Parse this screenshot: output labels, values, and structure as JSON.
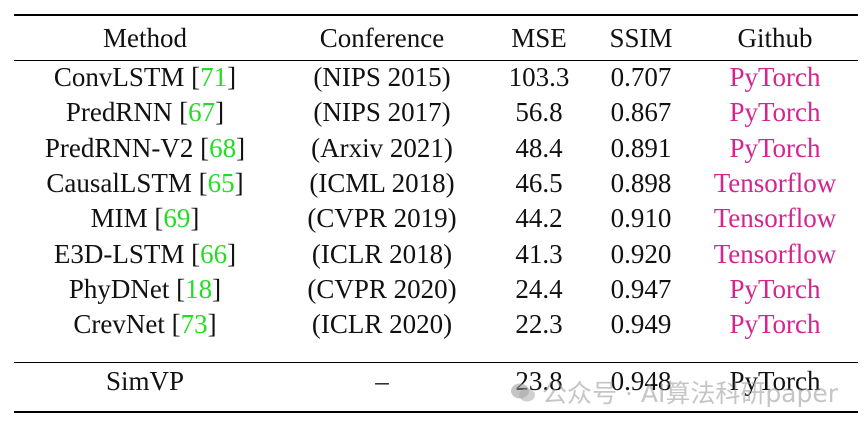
{
  "table": {
    "headers": [
      "Method",
      "Conference",
      "MSE",
      "SSIM",
      "Github"
    ],
    "rows": [
      {
        "method": "ConvLSTM",
        "ref": "71",
        "conference": "(NIPS 2015)",
        "mse": "103.3",
        "ssim": "0.707",
        "github": "PyTorch"
      },
      {
        "method": "PredRNN",
        "ref": "67",
        "conference": "(NIPS 2017)",
        "mse": "56.8",
        "ssim": "0.867",
        "github": "PyTorch"
      },
      {
        "method": "PredRNN-V2",
        "ref": "68",
        "conference": "(Arxiv 2021)",
        "mse": "48.4",
        "ssim": "0.891",
        "github": "PyTorch"
      },
      {
        "method": "CausalLSTM",
        "ref": "65",
        "conference": "(ICML 2018)",
        "mse": "46.5",
        "ssim": "0.898",
        "github": "Tensorflow"
      },
      {
        "method": "MIM",
        "ref": "69",
        "conference": "(CVPR 2019)",
        "mse": "44.2",
        "ssim": "0.910",
        "github": "Tensorflow"
      },
      {
        "method": "E3D-LSTM",
        "ref": "66",
        "conference": "(ICLR 2018)",
        "mse": "41.3",
        "ssim": "0.920",
        "github": "Tensorflow"
      },
      {
        "method": "PhyDNet",
        "ref": "18",
        "conference": "(CVPR 2020)",
        "mse": "24.4",
        "ssim": "0.947",
        "github": "PyTorch"
      },
      {
        "method": "CrevNet",
        "ref": "73",
        "conference": "(ICLR 2020)",
        "mse": "22.3",
        "ssim": "0.949",
        "github": "PyTorch"
      }
    ],
    "final_row": {
      "method": "SimVP",
      "conference": "–",
      "mse": "23.8",
      "ssim": "0.948",
      "github": "PyTorch"
    }
  },
  "colors": {
    "citation": "#22dd22",
    "github_link": "#d3248f"
  },
  "watermark": {
    "text": "公众号 · AI算法科研paper",
    "icon": "wechat-icon"
  }
}
